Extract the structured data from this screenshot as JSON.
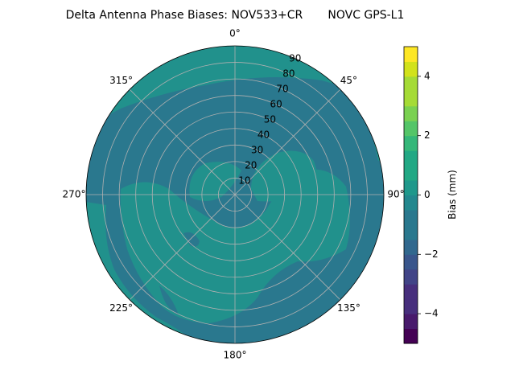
{
  "chart_data": {
    "type": "polar-contour",
    "title": "Delta Antenna Phase Biases: NOV533+CR       NOVC GPS-L1",
    "theta_labels": [
      "0°",
      "45°",
      "90°",
      "135°",
      "180°",
      "225°",
      "270°",
      "315°"
    ],
    "radial_labels": [
      "10",
      "20",
      "30",
      "40",
      "50",
      "60",
      "70",
      "80",
      "90"
    ],
    "radial_range": [
      0,
      90
    ],
    "theta_zero": "N",
    "theta_direction": "clockwise",
    "grid": true,
    "colorbar": {
      "label": "Bias (mm)",
      "ticks": [
        "−4",
        "−2",
        "0",
        "2",
        "4"
      ],
      "range": [
        -5,
        5
      ],
      "levels": [
        -5,
        -4.5,
        -4,
        -3.5,
        -3,
        -2.5,
        -2,
        -1.5,
        -1,
        -0.5,
        0,
        0.5,
        1,
        1.5,
        2,
        2.5,
        3,
        3.5,
        4,
        4.5,
        5
      ],
      "colors": [
        "#440154",
        "#481a6c",
        "#472f7d",
        "#414487",
        "#39568c",
        "#31688e",
        "#2a788e",
        "#23888e",
        "#1f988b",
        "#22a884",
        "#35b779",
        "#54c568",
        "#7ad151",
        "#a5db36",
        "#d2e21b",
        "#fde725"
      ]
    },
    "field_colors": {
      "low": "#2a788e",
      "high": "#21918c"
    }
  }
}
